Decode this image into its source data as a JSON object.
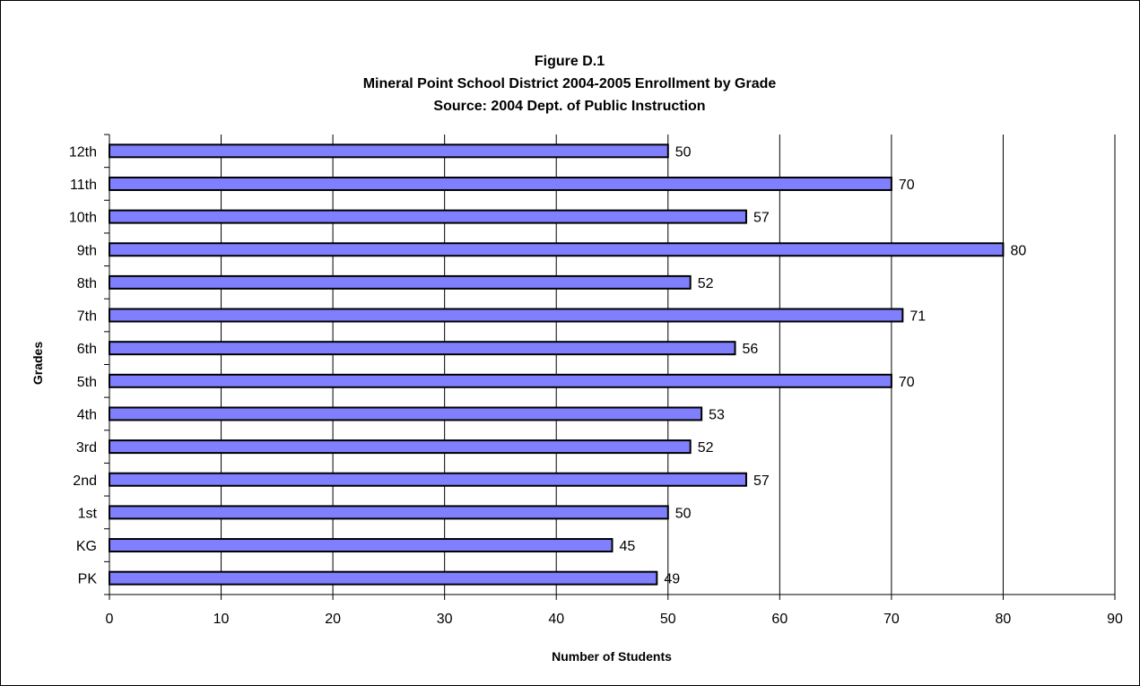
{
  "chart_data": {
    "type": "bar",
    "orientation": "horizontal",
    "title_lines": [
      "Figure D.1",
      "Mineral Point School District 2004-2005 Enrollment by Grade",
      "Source:  2004 Dept. of Public Instruction"
    ],
    "xlabel": "Number of Students",
    "ylabel": "Grades",
    "categories": [
      "12th",
      "11th",
      "10th",
      "9th",
      "8th",
      "7th",
      "6th",
      "5th",
      "4th",
      "3rd",
      "2nd",
      "1st",
      "KG",
      "PK"
    ],
    "values": [
      50,
      70,
      57,
      80,
      52,
      71,
      56,
      70,
      53,
      52,
      57,
      50,
      45,
      49
    ],
    "xlim": [
      0,
      90
    ],
    "xticks": [
      0,
      10,
      20,
      30,
      40,
      50,
      60,
      70,
      80,
      90
    ],
    "grid": "vertical",
    "legend": "none",
    "bar_color": "#8080ff",
    "bar_edge_color": "#000000"
  }
}
